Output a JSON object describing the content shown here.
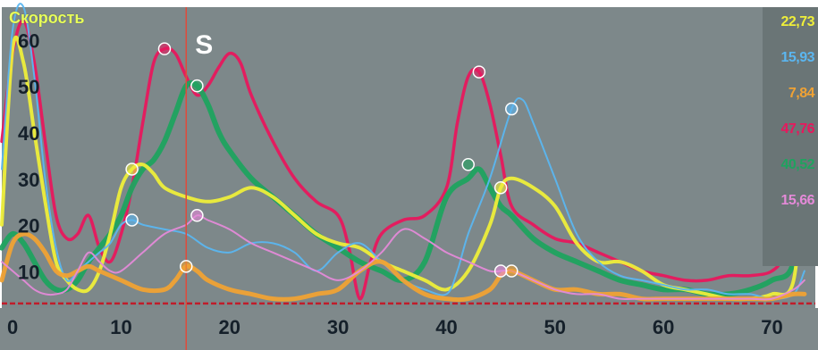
{
  "chart_data": {
    "type": "line",
    "ylabel": "Скорость",
    "xlim": [
      -1,
      74
    ],
    "ylim": [
      2,
      67
    ],
    "xticks": [
      0,
      10,
      20,
      30,
      40,
      50,
      60,
      70
    ],
    "yticks": [
      10,
      20,
      30,
      40,
      50,
      60
    ],
    "grid": false,
    "cursor_x": 16,
    "cursor_label": "S",
    "baseline_y": 3,
    "series": [
      {
        "color": "#e8175d",
        "x": [
          -1,
          0,
          1,
          2,
          3,
          4,
          5,
          6,
          7,
          8,
          9,
          10,
          11,
          12,
          13,
          14,
          15,
          16,
          17,
          18,
          19,
          20,
          21,
          22,
          24,
          26,
          28,
          30,
          31,
          32,
          33,
          34,
          36,
          38,
          40,
          41,
          42,
          43,
          44,
          45,
          46,
          48,
          50,
          52,
          54,
          56,
          58,
          60,
          62,
          64,
          66,
          68,
          70,
          71,
          72,
          73
        ],
        "y": [
          38,
          57,
          64,
          55,
          38,
          22,
          17,
          18,
          22,
          15,
          12,
          18,
          28,
          42,
          55,
          58,
          57,
          52,
          48,
          50,
          54,
          57,
          55,
          48,
          38,
          30,
          25,
          22,
          15,
          4,
          12,
          18,
          21,
          22,
          28,
          42,
          52,
          53,
          46,
          35,
          24,
          20,
          17,
          16,
          14,
          12,
          10,
          9,
          8,
          8,
          9,
          9,
          10,
          14,
          30,
          20
        ],
        "markers": [
          [
            14,
            58
          ],
          [
            43,
            53
          ]
        ]
      },
      {
        "color": "#1fa35f",
        "x": [
          -1,
          0,
          1,
          2,
          3,
          4,
          5,
          6,
          7,
          8,
          9,
          10,
          11,
          12,
          13,
          14,
          15,
          16,
          17,
          18,
          19,
          20,
          22,
          24,
          26,
          28,
          30,
          32,
          34,
          36,
          38,
          40,
          42,
          43,
          44,
          45,
          46,
          48,
          50,
          52,
          54,
          56,
          58,
          60,
          62,
          64,
          66,
          68,
          70,
          72,
          73
        ],
        "y": [
          15,
          18,
          16,
          12,
          8,
          6,
          6,
          8,
          12,
          15,
          18,
          22,
          28,
          32,
          34,
          38,
          44,
          50,
          50,
          46,
          40,
          36,
          30,
          26,
          22,
          18,
          15,
          12,
          10,
          8,
          12,
          26,
          30,
          32,
          28,
          24,
          22,
          17,
          14,
          12,
          10,
          8,
          7,
          6,
          6,
          5,
          5,
          6,
          8,
          12,
          35
        ],
        "markers": [
          [
            17,
            50
          ],
          [
            42,
            33
          ]
        ]
      },
      {
        "color": "#eeee3a",
        "x": [
          -1,
          0,
          1,
          2,
          3,
          4,
          5,
          6,
          7,
          8,
          9,
          10,
          11,
          12,
          13,
          14,
          16,
          18,
          20,
          22,
          24,
          26,
          28,
          30,
          32,
          34,
          36,
          38,
          40,
          42,
          44,
          45,
          46,
          48,
          50,
          52,
          54,
          56,
          58,
          60,
          62,
          64,
          66,
          68,
          70,
          72,
          73
        ],
        "y": [
          20,
          58,
          55,
          40,
          25,
          12,
          8,
          6,
          6,
          10,
          18,
          28,
          32,
          33,
          31,
          28,
          26,
          25,
          26,
          28,
          26,
          22,
          18,
          16,
          15,
          12,
          10,
          8,
          6,
          10,
          20,
          28,
          30,
          28,
          24,
          16,
          12,
          12,
          10,
          7,
          6,
          5,
          4,
          4,
          5,
          8,
          35
        ],
        "markers": [
          [
            11,
            32
          ],
          [
            45,
            28
          ]
        ]
      },
      {
        "color": "#5bb6f0",
        "x": [
          -1,
          0,
          1,
          2,
          3,
          4,
          5,
          6,
          7,
          8,
          9,
          10,
          11,
          12,
          14,
          16,
          18,
          20,
          22,
          24,
          26,
          28,
          30,
          32,
          34,
          36,
          38,
          40,
          41,
          42,
          44,
          46,
          47,
          48,
          50,
          52,
          54,
          56,
          58,
          60,
          62,
          64,
          66,
          68,
          70,
          72,
          73
        ],
        "y": [
          32,
          62,
          68,
          52,
          30,
          15,
          8,
          10,
          12,
          14,
          16,
          20,
          21,
          20,
          19,
          18,
          15,
          14,
          16,
          16,
          14,
          10,
          14,
          16,
          12,
          8,
          6,
          5,
          10,
          18,
          30,
          45,
          47,
          42,
          30,
          18,
          12,
          9,
          8,
          7,
          6,
          6,
          5,
          5,
          4,
          5,
          10
        ],
        "markers": [
          [
            11,
            21
          ],
          [
            46,
            45
          ]
        ]
      },
      {
        "color": "#f0a234",
        "x": [
          -1,
          0,
          1,
          2,
          3,
          4,
          5,
          6,
          7,
          8,
          10,
          12,
          14,
          15,
          16,
          17,
          18,
          20,
          22,
          24,
          26,
          28,
          30,
          32,
          34,
          36,
          38,
          40,
          42,
          44,
          45,
          46,
          48,
          50,
          52,
          54,
          56,
          58,
          60,
          62,
          64,
          66,
          68,
          70,
          72,
          73
        ],
        "y": [
          8,
          16,
          18,
          17,
          14,
          10,
          9,
          10,
          11,
          10,
          8,
          6,
          6,
          8,
          11,
          10,
          8,
          6,
          5,
          4,
          4,
          5,
          6,
          10,
          12,
          8,
          5,
          4,
          4,
          6,
          9,
          10,
          8,
          6,
          6,
          5,
          5,
          4,
          4,
          4,
          4,
          4,
          4,
          4,
          5,
          5
        ],
        "markers": [
          [
            16,
            11
          ],
          [
            46,
            10
          ]
        ]
      },
      {
        "color": "#e48ad8",
        "x": [
          -1,
          0,
          1,
          2,
          3,
          4,
          5,
          6,
          7,
          8,
          9,
          10,
          12,
          14,
          16,
          17,
          18,
          20,
          22,
          24,
          26,
          28,
          30,
          32,
          34,
          36,
          38,
          40,
          42,
          44,
          45,
          46,
          48,
          50,
          52,
          54,
          56,
          58,
          60,
          62,
          64,
          66,
          68,
          70,
          72,
          73
        ],
        "y": [
          12,
          10,
          8,
          6,
          5,
          5,
          6,
          10,
          14,
          12,
          10,
          10,
          14,
          18,
          20,
          22,
          21,
          19,
          16,
          14,
          12,
          10,
          8,
          10,
          14,
          19,
          17,
          14,
          12,
          10,
          10,
          10,
          8,
          6,
          5,
          5,
          4,
          4,
          4,
          4,
          4,
          4,
          4,
          4,
          6,
          8
        ],
        "markers": [
          [
            17,
            22
          ],
          [
            45,
            10
          ]
        ]
      }
    ],
    "readouts": [
      {
        "text": "22,73",
        "color": "#eeee3a"
      },
      {
        "text": "15,93",
        "color": "#5bb6f0"
      },
      {
        "text": "7,84",
        "color": "#f0a234"
      },
      {
        "text": "47,76",
        "color": "#e8175d"
      },
      {
        "text": "40,52",
        "color": "#1fa35f"
      },
      {
        "text": "15,66",
        "color": "#e48ad8"
      }
    ],
    "colors": {
      "background": "#7d888a",
      "axis_text": "#15202a",
      "cursor": "#e04a3a",
      "baseline": "#c01c2a",
      "cursor_label": "#ffffff",
      "readout_bg": "#6a7576"
    }
  }
}
